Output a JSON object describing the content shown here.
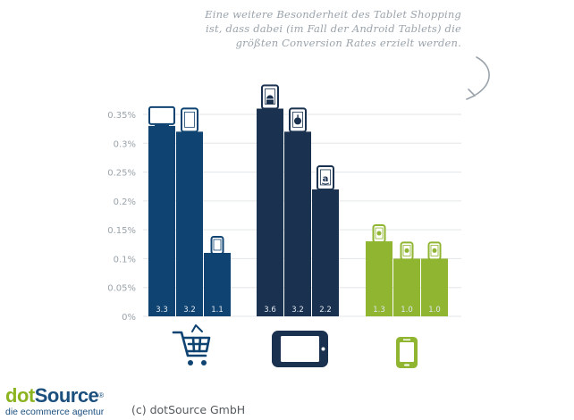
{
  "annotation": {
    "lines": [
      "Eine weitere Besonderheit des Tablet Shopping",
      "ist, dass dabei (im Fall der Android Tablets) die",
      "größten Conversion Rates erzielt werden."
    ]
  },
  "footer": {
    "logo_dot": "dot",
    "logo_source": "Source",
    "logo_reg": "®",
    "logo_sub": "die ecommerce agentur",
    "copyright": "(c) dotSource GmbH"
  },
  "colors": {
    "blue": "#0f4372",
    "navy": "#1a3150",
    "green": "#8fb531",
    "grid": "#e3e6e9",
    "axis_text": "#9aa3ab",
    "bar_label": "#dfe7ee"
  },
  "chart_data": {
    "type": "bar",
    "ylim": [
      0,
      0.35
    ],
    "yticks": [
      0,
      0.05,
      0.1,
      0.15,
      0.2,
      0.25,
      0.3,
      0.35
    ],
    "ytick_labels": [
      "0%",
      "0.05%",
      "0.1%",
      "0.15%",
      "0.2%",
      "0.25%",
      "0.3%",
      "0.35%"
    ],
    "grid": true,
    "groups": [
      {
        "icon": "shopping-cart-icon",
        "color": "#0f4372",
        "bars": [
          {
            "value": 0.33,
            "label": "3.3",
            "icon": "desktop-icon"
          },
          {
            "value": 0.32,
            "label": "3.2",
            "icon": "tablet-icon"
          },
          {
            "value": 0.11,
            "label": "1.1",
            "icon": "smartphone-icon"
          }
        ]
      },
      {
        "icon": "tablet-landscape-icon",
        "color": "#1a3150",
        "bars": [
          {
            "value": 0.36,
            "label": "3.6",
            "icon": "android-tablet-icon"
          },
          {
            "value": 0.32,
            "label": "3.2",
            "icon": "apple-tablet-icon"
          },
          {
            "value": 0.22,
            "label": "2.2",
            "icon": "amazon-tablet-icon"
          }
        ]
      },
      {
        "icon": "smartphone-icon",
        "color": "#8fb531",
        "bars": [
          {
            "value": 0.13,
            "label": "1.3",
            "icon": "android-phone-icon"
          },
          {
            "value": 0.1,
            "label": "1.0",
            "icon": "windows-phone-icon"
          },
          {
            "value": 0.1,
            "label": "1.0",
            "icon": "apple-phone-icon"
          }
        ]
      }
    ]
  }
}
